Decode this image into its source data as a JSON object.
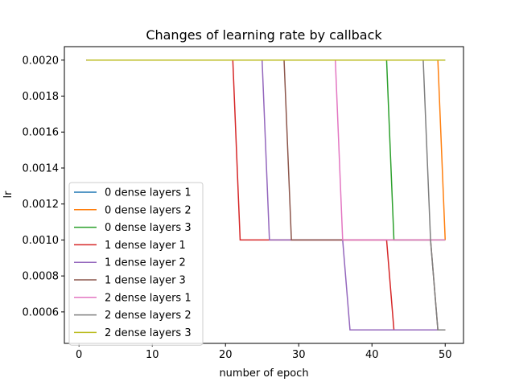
{
  "chart_data": {
    "type": "line",
    "title": "Changes of learning rate by callback",
    "xlabel": "number of epoch",
    "ylabel": "lr",
    "xlim": [
      -2.0,
      52.5
    ],
    "ylim": [
      0.000425,
      0.002075
    ],
    "xticks": [
      0,
      10,
      20,
      30,
      40,
      50
    ],
    "yticks": [
      0.0006,
      0.0008,
      0.001,
      0.0012,
      0.0014,
      0.0016,
      0.0018,
      0.002
    ],
    "ytick_labels": [
      "0.0006",
      "0.0008",
      "0.0010",
      "0.0012",
      "0.0014",
      "0.0016",
      "0.0018",
      "0.0020"
    ],
    "legend_position": "lower-left",
    "grid": false,
    "series": [
      {
        "name": "0 dense layers 1",
        "color": "#1f77b4",
        "points": [
          [
            1,
            0.002
          ],
          [
            50,
            0.002
          ]
        ]
      },
      {
        "name": "0 dense layers 2",
        "color": "#ff7f0e",
        "points": [
          [
            1,
            0.002
          ],
          [
            49,
            0.002
          ],
          [
            50,
            0.001
          ]
        ]
      },
      {
        "name": "0 dense layers 3",
        "color": "#2ca02c",
        "points": [
          [
            1,
            0.002
          ],
          [
            42,
            0.002
          ],
          [
            43,
            0.001
          ],
          [
            50,
            0.001
          ]
        ]
      },
      {
        "name": "1 dense layer 1",
        "color": "#d62728",
        "points": [
          [
            1,
            0.002
          ],
          [
            21,
            0.002
          ],
          [
            22,
            0.001
          ],
          [
            42,
            0.001
          ],
          [
            43,
            0.0005
          ],
          [
            50,
            0.0005
          ]
        ]
      },
      {
        "name": "1 dense layer 2",
        "color": "#9467bd",
        "points": [
          [
            1,
            0.002
          ],
          [
            25,
            0.002
          ],
          [
            26,
            0.001
          ],
          [
            36,
            0.001
          ],
          [
            37,
            0.0005
          ],
          [
            50,
            0.0005
          ]
        ]
      },
      {
        "name": "1 dense layer 3",
        "color": "#8c564b",
        "points": [
          [
            1,
            0.002
          ],
          [
            28,
            0.002
          ],
          [
            29,
            0.001
          ],
          [
            48,
            0.001
          ],
          [
            49,
            0.0005
          ],
          [
            50,
            0.0005
          ]
        ]
      },
      {
        "name": "2 dense layers 1",
        "color": "#e377c2",
        "points": [
          [
            1,
            0.002
          ],
          [
            35,
            0.002
          ],
          [
            36,
            0.001
          ],
          [
            50,
            0.001
          ]
        ]
      },
      {
        "name": "2 dense layers 2",
        "color": "#7f7f7f",
        "points": [
          [
            1,
            0.002
          ],
          [
            47,
            0.002
          ],
          [
            48,
            0.001
          ],
          [
            49,
            0.0005
          ],
          [
            50,
            0.0005
          ]
        ]
      },
      {
        "name": "2 dense layers 3",
        "color": "#bcbd22",
        "points": [
          [
            1,
            0.002
          ],
          [
            50,
            0.002
          ]
        ]
      }
    ]
  }
}
